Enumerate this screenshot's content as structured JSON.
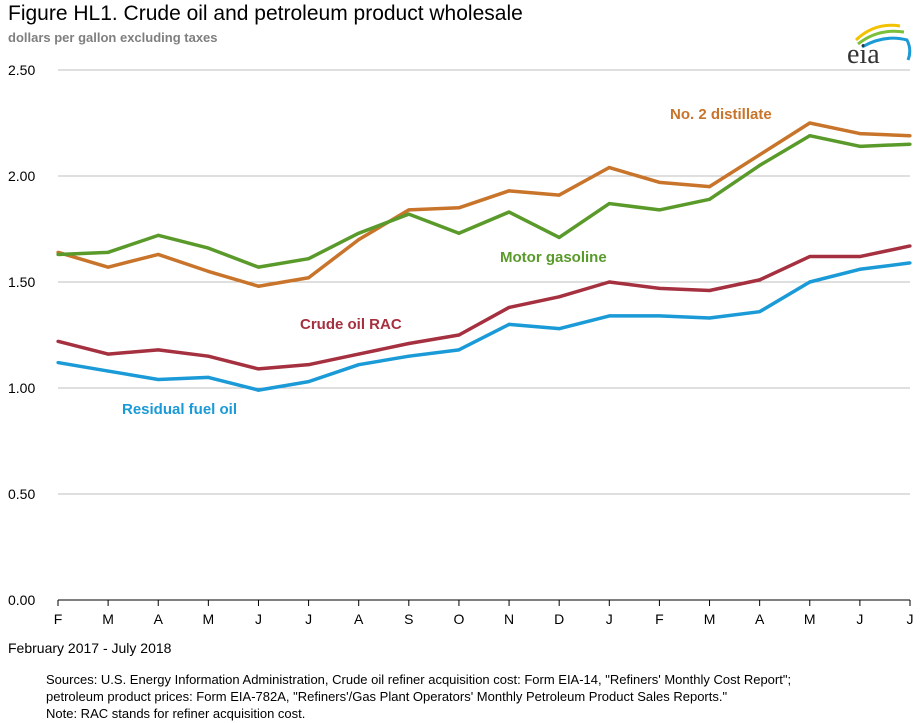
{
  "chart_data": {
    "type": "line",
    "title": "Figure HL1.  Crude oil and petroleum product wholesale",
    "subtitle": "dollars per gallon excluding taxes",
    "xlabel": "February 2017 - July 2018",
    "ylabel": "",
    "categories": [
      "F",
      "M",
      "A",
      "M",
      "J",
      "J",
      "A",
      "S",
      "O",
      "N",
      "D",
      "J",
      "F",
      "M",
      "A",
      "M",
      "J",
      "J"
    ],
    "ylim": [
      0,
      2.5
    ],
    "yticks": [
      "0.00",
      "0.50",
      "1.00",
      "1.50",
      "2.00",
      "2.50"
    ],
    "grid": true,
    "series": [
      {
        "name": "No. 2 distillate",
        "color": "#c8742a",
        "values": [
          1.64,
          1.57,
          1.63,
          1.55,
          1.48,
          1.52,
          1.7,
          1.84,
          1.85,
          1.93,
          1.91,
          2.04,
          1.97,
          1.95,
          2.1,
          2.25,
          2.2,
          2.19
        ]
      },
      {
        "name": "Motor gasoline",
        "color": "#5a9a2a",
        "values": [
          1.63,
          1.64,
          1.72,
          1.66,
          1.57,
          1.61,
          1.73,
          1.82,
          1.73,
          1.83,
          1.71,
          1.87,
          1.84,
          1.89,
          2.05,
          2.19,
          2.14,
          2.15
        ]
      },
      {
        "name": "Crude oil RAC",
        "color": "#a5303f",
        "values": [
          1.22,
          1.16,
          1.18,
          1.15,
          1.09,
          1.11,
          1.16,
          1.21,
          1.25,
          1.38,
          1.43,
          1.5,
          1.47,
          1.46,
          1.51,
          1.62,
          1.62,
          1.67
        ]
      },
      {
        "name": "Residual fuel oil",
        "color": "#1a9ad6",
        "values": [
          1.12,
          1.08,
          1.04,
          1.05,
          0.99,
          1.03,
          1.11,
          1.15,
          1.18,
          1.3,
          1.28,
          1.34,
          1.34,
          1.33,
          1.36,
          1.5,
          1.56,
          1.59
        ]
      }
    ]
  },
  "sources": [
    "Sources:  U.S. Energy Information Administration, Crude oil refiner acquisition cost:  Form EIA-14, \"Refiners' Monthly Cost Report\";",
    "petroleum product prices:  Form EIA-782A, \"Refiners'/Gas Plant Operators' Monthly Petroleum Product Sales Reports.\"",
    "Note:  RAC stands for refiner acquisition cost."
  ],
  "logo": {
    "text": "eia"
  }
}
